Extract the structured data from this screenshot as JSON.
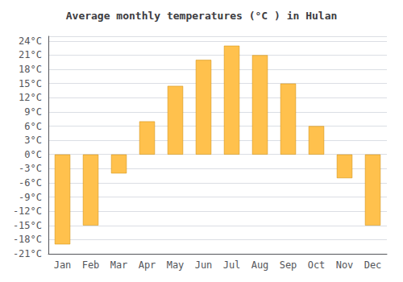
{
  "chart_data": {
    "type": "bar",
    "title": "Average monthly temperatures (°C ) in Hulan",
    "categories": [
      "Jan",
      "Feb",
      "Mar",
      "Apr",
      "May",
      "Jun",
      "Jul",
      "Aug",
      "Sep",
      "Oct",
      "Nov",
      "Dec"
    ],
    "values": [
      -19,
      -15,
      -4,
      7,
      14.5,
      20,
      23,
      21,
      15,
      6,
      -5,
      -15
    ],
    "color": "#FFC14D",
    "ylim": [
      -21,
      25
    ],
    "yticks": [
      {
        "value": -21,
        "label": "-21°C"
      },
      {
        "value": -18,
        "label": "-18°C"
      },
      {
        "value": -15,
        "label": "-15°C"
      },
      {
        "value": -12,
        "label": "-12°C"
      },
      {
        "value": -9,
        "label": "-9°C"
      },
      {
        "value": -6,
        "label": "-6°C"
      },
      {
        "value": -3,
        "label": "-3°C"
      },
      {
        "value": 0,
        "label": "0°C"
      },
      {
        "value": 3,
        "label": "3°C"
      },
      {
        "value": 6,
        "label": "6°C"
      },
      {
        "value": 9,
        "label": "9°C"
      },
      {
        "value": 12,
        "label": "12°C"
      },
      {
        "value": 15,
        "label": "15°C"
      },
      {
        "value": 18,
        "label": "18°C"
      },
      {
        "value": 21,
        "label": "21°C"
      },
      {
        "value": 24,
        "label": "24°C"
      }
    ],
    "grid": true
  }
}
